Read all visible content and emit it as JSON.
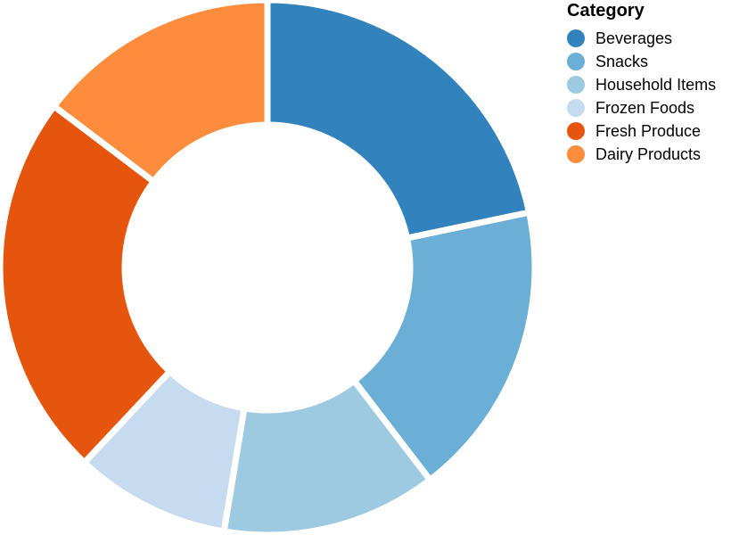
{
  "chart_data": {
    "type": "pie",
    "variant": "donut",
    "legend_title": "Category",
    "legend_position": "top-right",
    "categories": [
      "Beverages",
      "Snacks",
      "Household Items",
      "Frozen Foods",
      "Fresh Produce",
      "Dairy Products"
    ],
    "values": [
      21.7,
      17.9,
      13.0,
      9.4,
      23.3,
      14.7
    ],
    "colors": [
      "#3182bd",
      "#6baed6",
      "#9ecae1",
      "#c6dbef",
      "#e6550d",
      "#fd8d3c"
    ]
  }
}
